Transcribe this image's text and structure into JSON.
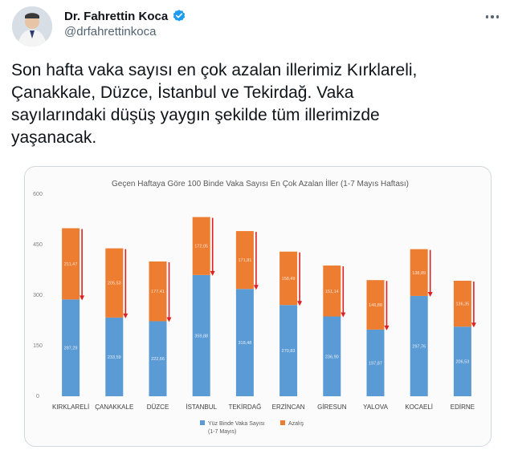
{
  "tweet": {
    "author_name": "Dr. Fahrettin Koca",
    "author_handle": "@drfahrettinkoca",
    "text": "Son hafta vaka sayısı en çok azalan illerimiz Kırklareli,\nÇanakkale, Düzce, İstanbul ve Tekirdağ. Vaka\nsayılarındaki düşüş yaygın şekilde tüm illerimizde\nyaşanacak.",
    "icons": [
      "verified-badge-icon",
      "more-options-icon",
      "avatar-photo"
    ],
    "colors": {
      "verified": "#1d9bf0",
      "handle": "#536471"
    }
  },
  "chart_data": {
    "type": "bar",
    "stacked": true,
    "title": "Geçen Haftaya Göre 100 Binde Vaka Sayısı En Çok Azalan İller (1-7 Mayıs Haftası)",
    "categories": [
      "KIRKLARELİ",
      "ÇANAKKALE",
      "DÜZCE",
      "İSTANBUL",
      "TEKİRDAĞ",
      "ERZİNCAN",
      "GİRESUN",
      "YALOVA",
      "KOCAELİ",
      "EDİRNE"
    ],
    "series": [
      {
        "name": "Yüz Binde Vaka Sayısı",
        "name_line2": "(1-7 Mayıs)",
        "color": "#5b9bd5",
        "values": [
          287.29,
          233.59,
          222.66,
          359.88,
          318.48,
          270.83,
          236.9,
          197.87,
          297.76,
          206.53
        ],
        "labels": [
          "287,29",
          "233,59",
          "222,66",
          "359,88",
          "318,48",
          "270,83",
          "236,90",
          "197,87",
          "297,76",
          "206,53"
        ]
      },
      {
        "name": "Azalış",
        "color": "#ed7d31",
        "values": [
          211.47,
          205.53,
          177.41,
          172.05,
          171.81,
          158.49,
          151.14,
          146.88,
          138.89,
          136.35
        ],
        "labels": [
          "211,47",
          "205,53",
          "177,41",
          "172,05",
          "171,81",
          "158,49",
          "151,14",
          "146,88",
          "138,89",
          "136,35"
        ]
      }
    ],
    "ylim": [
      0,
      600
    ],
    "yticks": [
      0,
      150,
      300,
      450,
      600
    ],
    "grid": false,
    "legend_position": "bottom",
    "annotation": "red downward arrow beside each bar",
    "arrow_color": "#e02020"
  }
}
